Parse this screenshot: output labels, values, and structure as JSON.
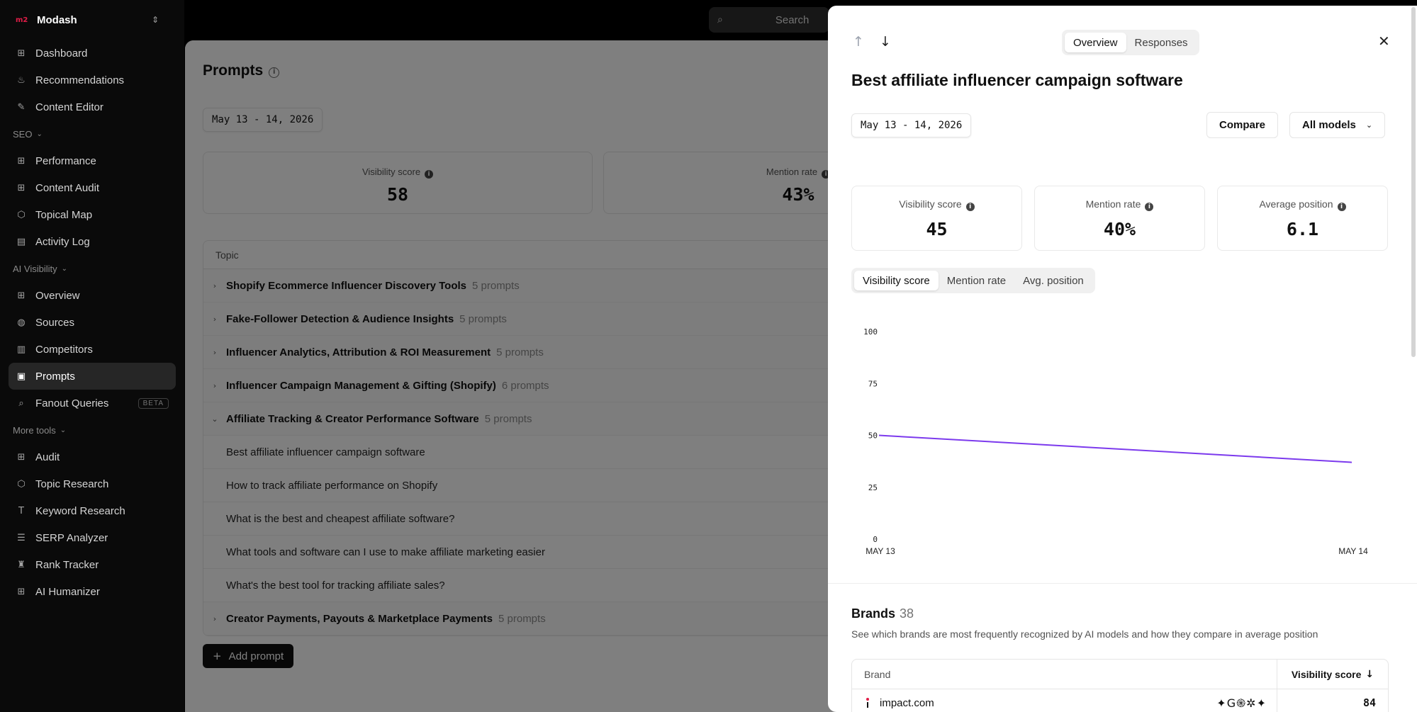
{
  "workspace": {
    "logo": "m2",
    "name": "Modash"
  },
  "sidebar": {
    "top_items": [
      {
        "label": "Dashboard",
        "icon": "grid-icon"
      },
      {
        "label": "Recommendations",
        "icon": "flame-icon"
      },
      {
        "label": "Content Editor",
        "icon": "pen-icon"
      }
    ],
    "seo_section": "SEO",
    "seo_items": [
      {
        "label": "Performance",
        "icon": "grid-icon"
      },
      {
        "label": "Content Audit",
        "icon": "grid-icon"
      },
      {
        "label": "Topical Map",
        "icon": "hexagon-icon"
      },
      {
        "label": "Activity Log",
        "icon": "calendar-icon"
      }
    ],
    "ai_section": "AI Visibility",
    "ai_items": [
      {
        "label": "Overview",
        "icon": "grid-icon"
      },
      {
        "label": "Sources",
        "icon": "globe-icon"
      },
      {
        "label": "Competitors",
        "icon": "building-icon"
      },
      {
        "label": "Prompts",
        "icon": "prompt-icon",
        "active": true
      },
      {
        "label": "Fanout Queries",
        "icon": "search-icon",
        "badge": "BETA"
      }
    ],
    "more_section": "More tools",
    "more_items": [
      {
        "label": "Audit",
        "icon": "grid-icon"
      },
      {
        "label": "Topic Research",
        "icon": "hexagon-icon"
      },
      {
        "label": "Keyword Research",
        "icon": "text-icon"
      },
      {
        "label": "SERP Analyzer",
        "icon": "list-icon"
      },
      {
        "label": "Rank Tracker",
        "icon": "trophy-icon"
      },
      {
        "label": "AI Humanizer",
        "icon": "grid-icon"
      }
    ]
  },
  "search": {
    "placeholder": "Search"
  },
  "main": {
    "title": "Prompts",
    "date_range": "May 13 - 14, 2026",
    "stats": [
      {
        "label": "Visibility score",
        "value": "58"
      },
      {
        "label": "Mention rate",
        "value": "43%"
      }
    ],
    "table_header": "Topic",
    "rows": [
      {
        "type": "group",
        "name": "Shopify Ecommerce Influencer Discovery Tools",
        "count": "5 prompts",
        "expanded": false
      },
      {
        "type": "group",
        "name": "Fake-Follower Detection & Audience Insights",
        "count": "5 prompts",
        "expanded": false
      },
      {
        "type": "group",
        "name": "Influencer Analytics, Attribution & ROI Measurement",
        "count": "5 prompts",
        "expanded": false
      },
      {
        "type": "group",
        "name": "Influencer Campaign Management & Gifting (Shopify)",
        "count": "6 prompts",
        "expanded": false
      },
      {
        "type": "group",
        "name": "Affiliate Tracking & Creator Performance Software",
        "count": "5 prompts",
        "expanded": true
      },
      {
        "type": "prompt",
        "name": "Best affiliate influencer campaign software"
      },
      {
        "type": "prompt",
        "name": "How to track affiliate performance on Shopify"
      },
      {
        "type": "prompt",
        "name": "What is the best and cheapest affiliate software?"
      },
      {
        "type": "prompt",
        "name": "What tools and software can I use to make affiliate marketing easier"
      },
      {
        "type": "prompt",
        "name": "What's the best tool for tracking affiliate sales?"
      },
      {
        "type": "group",
        "name": "Creator Payments, Payouts & Marketplace Payments",
        "count": "5 prompts",
        "expanded": false
      }
    ],
    "add_prompt": "Add prompt"
  },
  "drawer": {
    "tabs": [
      "Overview",
      "Responses"
    ],
    "active_tab": "Overview",
    "title": "Best affiliate influencer campaign software",
    "date_range": "May 13 - 14, 2026",
    "compare_label": "Compare",
    "models_label": "All models",
    "metrics": [
      {
        "label": "Visibility score",
        "value": "45"
      },
      {
        "label": "Mention rate",
        "value": "40%"
      },
      {
        "label": "Average position",
        "value": "6.1"
      }
    ],
    "chart_tabs": [
      "Visibility score",
      "Mention rate",
      "Avg. position"
    ],
    "active_chart_tab": "Visibility score",
    "brands_title": "Brands",
    "brands_count": "38",
    "brands_subtitle": "See which brands are most frequently recognized by AI models and how they compare in average position",
    "brands_col_brand": "Brand",
    "brands_col_score": "Visibility score",
    "brands": [
      {
        "name": "impact.com",
        "models": "✦G֍✲✦",
        "score": "84"
      }
    ]
  },
  "chart_data": {
    "type": "line",
    "x": [
      "MAY 13",
      "MAY 14"
    ],
    "series": [
      {
        "values": [
          50,
          37
        ],
        "color": "#7c3aed"
      }
    ],
    "yticks": [
      0,
      25,
      50,
      75,
      100
    ],
    "ylim": [
      0,
      100
    ],
    "grid": false
  }
}
